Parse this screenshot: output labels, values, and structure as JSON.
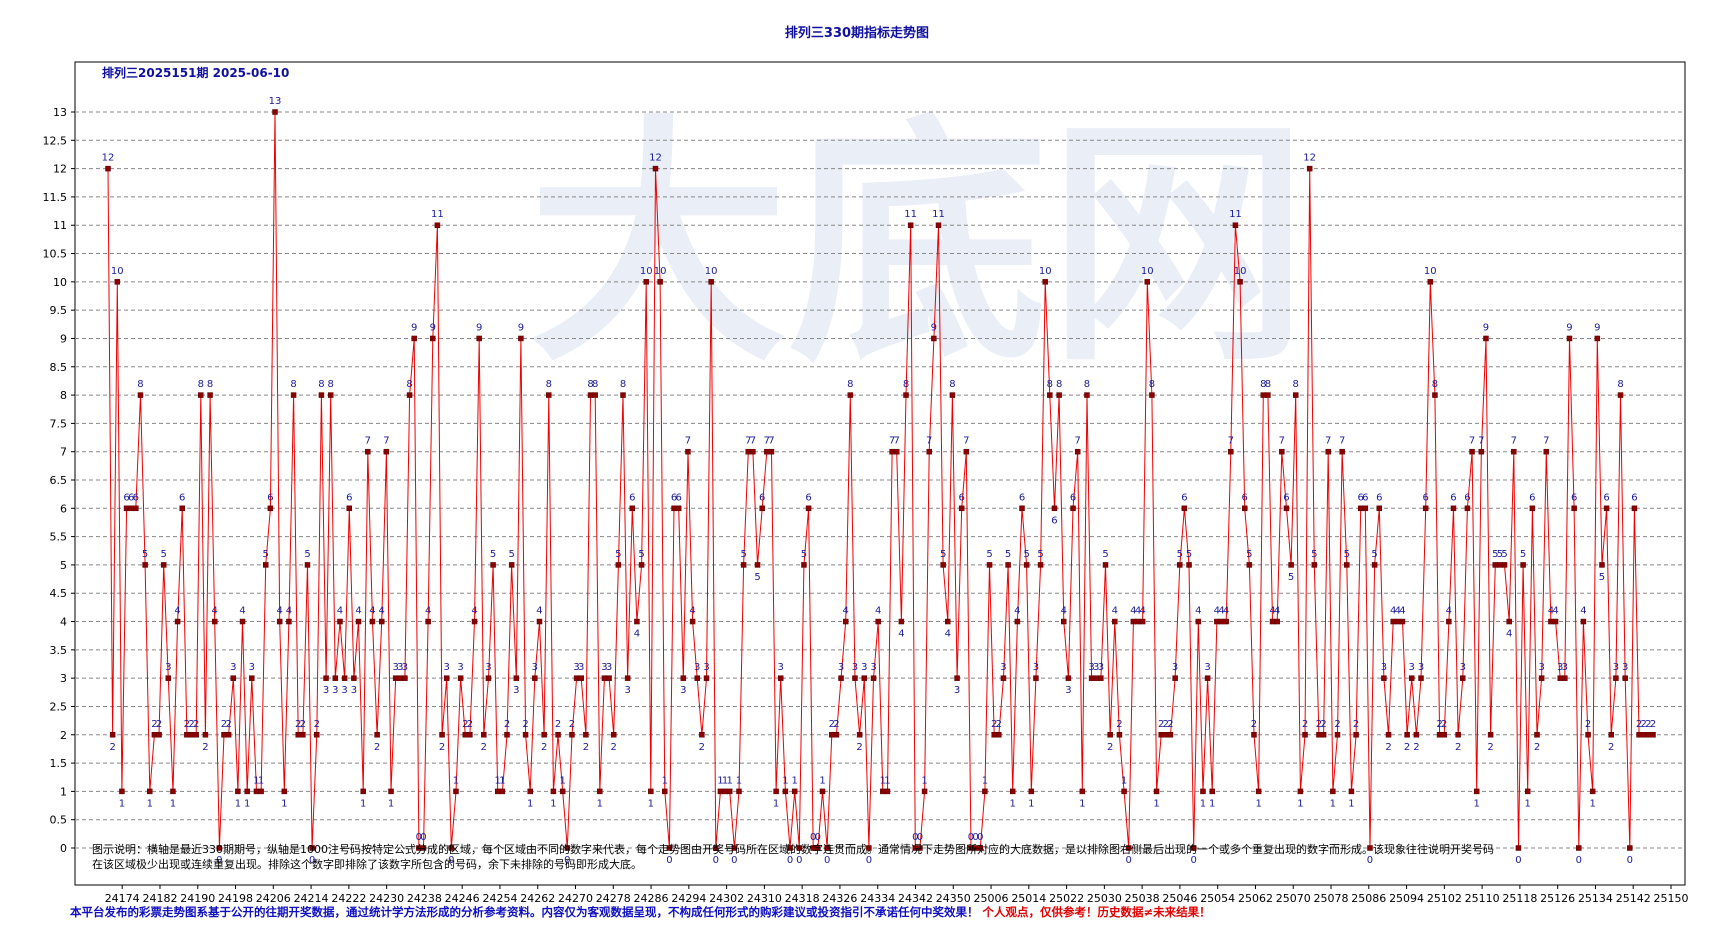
{
  "page": {
    "title": "排列三330期指标走势图",
    "note": "图示说明：横轴是最近330期期号，纵轴是1000注号码按特定公式分成的区域，每个区域由不同的数字来代表，每个走势图由开奖号码所在区域的数字连贯而成。通常情况下走势图所对应的大底数据，是以排除图右侧最后出现的一个或多个重复出现的数字而形成。该现象往往说明开奖号码在该区域极少出现或连续重复出现。排除这个数字即排除了该数字所包含的号码，余下未排除的号码即形成大底。",
    "disclaimer": "本平台发布的彩票走势图系基于公开的往期开奖数据，通过统计学方法形成的分析参考资料。内容仅为客观数据呈现，不构成任何形式的购彩建议或投资指引不承诺任何中奖效果！",
    "disclaimer_red": "个人观点，仅供参考！历史数据≠未来结果！"
  },
  "colors": {
    "line": "#ee0000",
    "marker": "#8b0000",
    "value_label": "#1a1a9a",
    "title": "#1010a0",
    "grid": "#888888",
    "watermark": "#e6ecf6"
  },
  "chart_data": {
    "type": "line",
    "title": "排列三330期指标走势图",
    "subtitle": "排列三2025151期  2025-06-10",
    "watermark": "大底网",
    "xlabel": "",
    "ylabel": "",
    "ylim": [
      0,
      13
    ],
    "yticks": [
      "0",
      "0.5",
      "1",
      "1.5",
      "2",
      "2.5",
      "3",
      "3.5",
      "4",
      "4.5",
      "5",
      "5.5",
      "6",
      "6.5",
      "7",
      "7.5",
      "8",
      "8.5",
      "9",
      "9.5",
      "10",
      "10.5",
      "11",
      "11.5",
      "12",
      "12.5",
      "13"
    ],
    "xticks": [
      "24174",
      "24182",
      "24190",
      "24198",
      "24206",
      "24214",
      "24222",
      "24230",
      "24238",
      "24246",
      "24254",
      "24262",
      "24270",
      "24278",
      "24286",
      "24294",
      "24302",
      "24310",
      "24318",
      "24326",
      "24334",
      "24342",
      "24350",
      "25006",
      "25014",
      "25022",
      "25030",
      "25038",
      "25046",
      "25054",
      "25062",
      "25070",
      "25078",
      "25086",
      "25094",
      "25102",
      "25110",
      "25118",
      "25126",
      "25134",
      "25142",
      "25150"
    ],
    "grid": true,
    "series": [
      {
        "values": [
          12,
          2,
          10,
          1,
          6,
          6,
          6,
          8,
          5,
          1,
          2,
          2,
          5,
          3,
          1,
          4,
          6,
          2,
          2,
          2,
          8,
          2,
          8,
          4,
          0,
          2,
          2,
          3,
          1,
          4,
          1,
          3,
          1,
          1,
          5,
          6,
          13,
          4,
          1,
          4,
          8,
          2,
          2,
          5,
          0,
          2,
          8,
          3,
          8,
          3,
          4,
          3,
          6,
          3,
          4,
          1,
          7,
          4,
          2,
          4,
          7,
          1,
          3,
          3,
          3,
          8,
          9,
          0,
          0,
          4,
          9,
          11,
          2,
          3,
          0,
          1,
          3,
          2,
          2,
          4,
          9,
          2,
          3,
          5,
          1,
          1,
          2,
          5,
          3,
          9,
          2,
          1,
          3,
          4,
          2,
          8,
          1,
          2,
          1,
          0,
          2,
          3,
          3,
          2,
          8,
          8,
          1,
          3,
          3,
          2,
          5,
          8,
          3,
          6,
          4,
          5,
          10,
          1,
          12,
          10,
          1,
          0,
          6,
          6,
          3,
          7,
          4,
          3,
          2,
          3,
          10,
          0,
          1,
          1,
          1,
          0,
          1,
          5,
          7,
          7,
          5,
          6,
          7,
          7,
          1,
          3,
          1,
          0,
          1,
          0,
          5,
          6,
          0,
          0,
          1,
          0,
          2,
          2,
          3,
          4,
          8,
          3,
          2,
          3,
          0,
          3,
          4,
          1,
          1,
          7,
          7,
          4,
          8,
          11,
          0,
          0,
          1,
          7,
          9,
          11,
          5,
          4,
          8,
          3,
          6,
          7,
          0,
          0,
          0,
          1,
          5,
          2,
          2,
          3,
          5,
          1,
          4,
          6,
          5,
          1,
          3,
          5,
          10,
          8,
          6,
          8,
          4,
          3,
          6,
          7,
          1,
          8,
          3,
          3,
          3,
          5,
          2,
          4,
          2,
          1,
          0,
          4,
          4,
          4,
          10,
          8,
          1,
          2,
          2,
          2,
          3,
          5,
          6,
          5,
          0,
          4,
          1,
          3,
          1,
          4,
          4,
          4,
          7,
          11,
          10,
          6,
          5,
          2,
          1,
          8,
          8,
          4,
          4,
          7,
          6,
          5,
          8,
          1,
          2,
          12,
          5,
          2,
          2,
          7,
          1,
          2,
          7,
          5,
          1,
          2,
          6,
          6,
          0,
          5,
          6,
          3,
          2,
          4,
          4,
          4,
          2,
          3,
          2,
          3,
          6,
          10,
          8,
          2,
          2,
          4,
          6,
          2,
          3,
          6,
          7,
          1,
          7,
          9,
          2,
          5,
          5,
          5,
          4,
          7,
          0,
          5,
          1,
          6,
          2,
          3,
          7,
          4,
          4,
          3,
          3,
          9,
          6,
          0,
          4,
          2,
          1,
          9,
          5,
          6,
          2,
          3,
          8,
          3,
          0,
          6,
          2,
          2,
          2,
          2
        ]
      }
    ]
  }
}
